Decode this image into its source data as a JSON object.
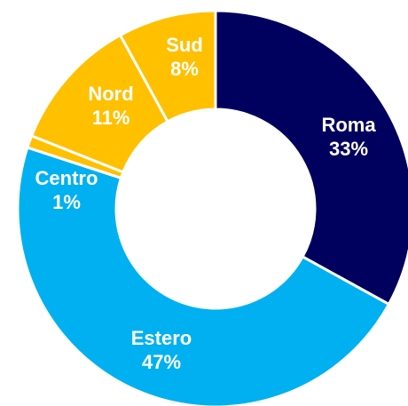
{
  "chart_data": {
    "type": "donut",
    "categories": [
      "Roma",
      "Estero",
      "Centro",
      "Nord",
      "Sud"
    ],
    "values": [
      33,
      47,
      1,
      11,
      8
    ],
    "value_labels": [
      "33%",
      "47%",
      "1%",
      "11%",
      "8%"
    ],
    "colors": [
      "#00005e",
      "#00b0f0",
      "#ffc000",
      "#ffc000",
      "#ffc000"
    ]
  }
}
